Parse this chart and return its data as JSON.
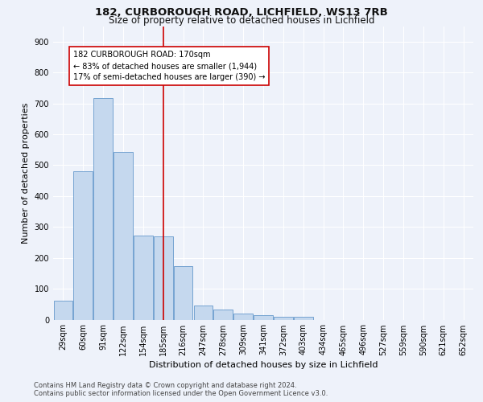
{
  "title1": "182, CURBOROUGH ROAD, LICHFIELD, WS13 7RB",
  "title2": "Size of property relative to detached houses in Lichfield",
  "xlabel": "Distribution of detached houses by size in Lichfield",
  "ylabel": "Number of detached properties",
  "categories": [
    "29sqm",
    "60sqm",
    "91sqm",
    "122sqm",
    "154sqm",
    "185sqm",
    "216sqm",
    "247sqm",
    "278sqm",
    "309sqm",
    "341sqm",
    "372sqm",
    "403sqm",
    "434sqm",
    "465sqm",
    "496sqm",
    "527sqm",
    "559sqm",
    "590sqm",
    "621sqm",
    "652sqm"
  ],
  "values": [
    60,
    480,
    718,
    543,
    272,
    270,
    173,
    46,
    33,
    20,
    14,
    8,
    8,
    0,
    0,
    0,
    0,
    0,
    0,
    0,
    0
  ],
  "bar_color": "#c5d8ee",
  "bar_edge_color": "#6699cc",
  "reference_line_x": 5.0,
  "annotation_line0": "182 CURBOROUGH ROAD: 170sqm",
  "annotation_line1": "← 83% of detached houses are smaller (1,944)",
  "annotation_line2": "17% of semi-detached houses are larger (390) →",
  "annotation_box_color": "#cc0000",
  "ylim": [
    0,
    950
  ],
  "yticks": [
    0,
    100,
    200,
    300,
    400,
    500,
    600,
    700,
    800,
    900
  ],
  "footer1": "Contains HM Land Registry data © Crown copyright and database right 2024.",
  "footer2": "Contains public sector information licensed under the Open Government Licence v3.0.",
  "bg_color": "#eef2fa",
  "plot_bg_color": "#eef2fa",
  "title_fontsize": 9.5,
  "subtitle_fontsize": 8.5,
  "ylabel_fontsize": 8,
  "xlabel_fontsize": 8,
  "tick_fontsize": 7,
  "annot_fontsize": 7,
  "footer_fontsize": 6
}
